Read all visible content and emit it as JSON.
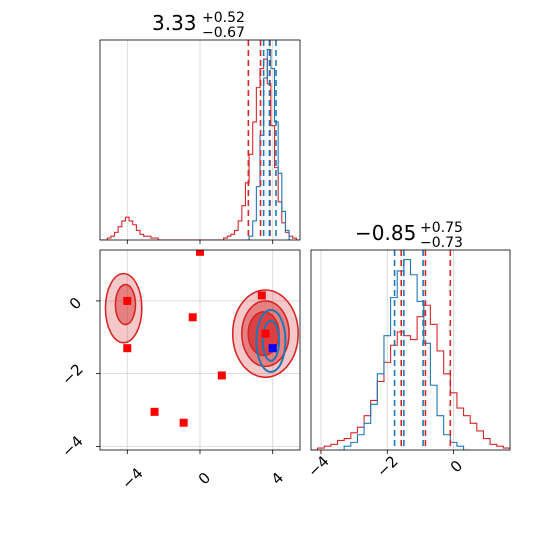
{
  "chart_data": [
    {
      "type": "histogram",
      "panel": "top-left",
      "title": {
        "main": "3.33",
        "sup": "+0.52",
        "sub": "−0.67"
      },
      "xlim": [
        -5.5,
        5.5
      ],
      "grid": true,
      "series": [
        {
          "name": "",
          "color": "#d62728",
          "x": [
            -5.4,
            -5.2,
            -5.0,
            -4.8,
            -4.6,
            -4.4,
            -4.2,
            -4.0,
            -3.8,
            -3.6,
            -3.4,
            -3.2,
            -3.0,
            -2.8,
            -2.6,
            -2.4,
            -2.2,
            -2.0,
            -1.8,
            -1.6,
            -1.4,
            -1.2,
            -1.0,
            -0.8,
            -0.6,
            -0.4,
            -0.2,
            0.0,
            0.2,
            0.4,
            0.6,
            0.8,
            1.0,
            1.2,
            1.4,
            1.6,
            1.8,
            2.0,
            2.2,
            2.4,
            2.6,
            2.8,
            3.0,
            3.2,
            3.4,
            3.6,
            3.8,
            4.0,
            4.2,
            4.4,
            4.6,
            4.8,
            5.0,
            5.2,
            5.4
          ],
          "values": [
            0,
            0,
            0.01,
            0.02,
            0.04,
            0.07,
            0.1,
            0.12,
            0.1,
            0.08,
            0.05,
            0.03,
            0.02,
            0.02,
            0.01,
            0.01,
            0,
            0,
            0,
            0,
            0,
            0,
            0,
            0,
            0,
            0,
            0,
            0,
            0,
            0,
            0,
            0,
            0,
            0,
            0.01,
            0.02,
            0.03,
            0.05,
            0.1,
            0.18,
            0.3,
            0.45,
            0.62,
            0.8,
            0.9,
            0.95,
            0.82,
            0.6,
            0.38,
            0.2,
            0.09,
            0.04,
            0.02,
            0.01,
            0
          ]
        },
        {
          "name": "",
          "color": "#1f77b4",
          "x": [
            2.6,
            2.8,
            3.0,
            3.2,
            3.4,
            3.6,
            3.8,
            4.0,
            4.2,
            4.4,
            4.6,
            4.8,
            5.0
          ],
          "values": [
            0,
            0.02,
            0.1,
            0.28,
            0.55,
            0.85,
            1.0,
            0.9,
            0.62,
            0.35,
            0.15,
            0.05,
            0
          ]
        }
      ],
      "quantile_lines": [
        {
          "color": "#d62728",
          "x": [
            2.66,
            3.33,
            3.85
          ]
        },
        {
          "color": "#1f77b4",
          "x": [
            3.5,
            3.82,
            4.18
          ]
        }
      ]
    },
    {
      "type": "histogram",
      "panel": "bottom-right",
      "title": {
        "main": "−0.85",
        "sup": "+0.75",
        "sub": "−0.73"
      },
      "xlim": [
        -4.3,
        1.7
      ],
      "xticks": [
        "−4",
        "−2",
        "0"
      ],
      "grid": true,
      "series": [
        {
          "name": "",
          "color": "#d62728",
          "x": [
            -4.2,
            -4.0,
            -3.8,
            -3.6,
            -3.4,
            -3.2,
            -3.0,
            -2.8,
            -2.6,
            -2.4,
            -2.2,
            -2.0,
            -1.8,
            -1.6,
            -1.4,
            -1.2,
            -1.0,
            -0.8,
            -0.6,
            -0.4,
            -0.2,
            0.0,
            0.2,
            0.4,
            0.6,
            0.8,
            1.0,
            1.2,
            1.4,
            1.6
          ],
          "values": [
            0,
            0.01,
            0.02,
            0.03,
            0.05,
            0.06,
            0.09,
            0.12,
            0.18,
            0.26,
            0.36,
            0.46,
            0.55,
            0.62,
            0.6,
            0.58,
            0.7,
            0.76,
            0.66,
            0.52,
            0.4,
            0.3,
            0.22,
            0.18,
            0.14,
            0.1,
            0.06,
            0.03,
            0.02,
            0.01
          ]
        },
        {
          "name": "",
          "color": "#1f77b4",
          "x": [
            -3.4,
            -3.2,
            -3.0,
            -2.8,
            -2.6,
            -2.4,
            -2.2,
            -2.0,
            -1.8,
            -1.6,
            -1.4,
            -1.2,
            -1.0,
            -0.8,
            -0.6,
            -0.4,
            -0.2,
            0.0,
            0.2,
            0.4
          ],
          "values": [
            0,
            0.02,
            0.04,
            0.08,
            0.14,
            0.24,
            0.4,
            0.6,
            0.8,
            0.94,
            1.0,
            0.92,
            0.78,
            0.56,
            0.34,
            0.18,
            0.08,
            0.04,
            0.02,
            0
          ]
        }
      ],
      "quantile_lines": [
        {
          "color": "#d62728",
          "x": [
            -1.58,
            -0.85,
            -0.1
          ]
        },
        {
          "color": "#1f77b4",
          "x": [
            -1.78,
            -1.5,
            -0.92
          ]
        }
      ]
    },
    {
      "type": "contour",
      "panel": "bottom-left",
      "xlim": [
        -5.5,
        5.5
      ],
      "ylim": [
        -4.1,
        1.4
      ],
      "xticks": [
        "−4",
        "0",
        "4"
      ],
      "yticks": [
        "0",
        "−2",
        "−4"
      ],
      "grid": true,
      "series": [
        {
          "name": "",
          "color": "#d62728",
          "levels": [
            {
              "cx": 3.6,
              "cy": -0.9,
              "rx": 1.8,
              "ry": 1.2,
              "opacity": 0.25
            },
            {
              "cx": 3.6,
              "cy": -0.9,
              "rx": 1.3,
              "ry": 0.9,
              "opacity": 0.45
            },
            {
              "cx": 3.5,
              "cy": -0.9,
              "rx": 0.85,
              "ry": 0.6,
              "opacity": 0.7
            },
            {
              "cx": -4.2,
              "cy": -0.2,
              "rx": 1.0,
              "ry": 0.95,
              "opacity": 0.25
            },
            {
              "cx": -4.1,
              "cy": -0.1,
              "rx": 0.55,
              "ry": 0.55,
              "opacity": 0.45
            }
          ]
        },
        {
          "name": "",
          "color": "#1f77b4",
          "levels": [
            {
              "cx": 3.9,
              "cy": -1.1,
              "rx": 0.8,
              "ry": 0.85
            },
            {
              "cx": 3.9,
              "cy": -1.1,
              "rx": 0.45,
              "ry": 0.55
            }
          ]
        }
      ],
      "markers_red": [
        {
          "x": 0.0,
          "y": 1.35
        },
        {
          "x": -4.0,
          "y": 0.0
        },
        {
          "x": -0.4,
          "y": -0.45
        },
        {
          "x": -4.0,
          "y": -1.3
        },
        {
          "x": 1.2,
          "y": -2.05
        },
        {
          "x": -2.5,
          "y": -3.05
        },
        {
          "x": -0.9,
          "y": -3.35
        },
        {
          "x": 3.4,
          "y": 0.15
        },
        {
          "x": 3.6,
          "y": -0.9
        }
      ],
      "markers_blue": [
        {
          "x": 4.0,
          "y": -1.3
        }
      ]
    }
  ]
}
